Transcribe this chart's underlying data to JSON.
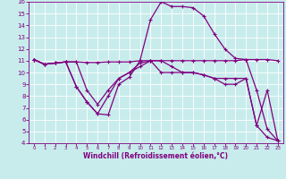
{
  "xlabel": "Windchill (Refroidissement éolien,°C)",
  "background_color": "#c8ecec",
  "line_color": "#800080",
  "grid_color": "#ffffff",
  "xlim": [
    -0.5,
    23.5
  ],
  "ylim": [
    4,
    16
  ],
  "xticks": [
    0,
    1,
    2,
    3,
    4,
    5,
    6,
    7,
    8,
    9,
    10,
    11,
    12,
    13,
    14,
    15,
    16,
    17,
    18,
    19,
    20,
    21,
    22,
    23
  ],
  "yticks": [
    4,
    5,
    6,
    7,
    8,
    9,
    10,
    11,
    12,
    13,
    14,
    15,
    16
  ],
  "series1_x": [
    0,
    1,
    2,
    3,
    4,
    5,
    6,
    7,
    8,
    9,
    10,
    11,
    12,
    13,
    14,
    15,
    16,
    17,
    18,
    19,
    20,
    21,
    22,
    23
  ],
  "series1_y": [
    11.1,
    10.7,
    10.8,
    10.9,
    10.9,
    10.85,
    10.85,
    10.9,
    10.9,
    10.9,
    11.0,
    11.0,
    11.0,
    11.0,
    11.0,
    11.0,
    11.0,
    11.0,
    11.0,
    11.0,
    11.1,
    11.1,
    11.1,
    11.0
  ],
  "series2_x": [
    0,
    1,
    2,
    3,
    4,
    5,
    6,
    7,
    8,
    9,
    10,
    11,
    12,
    13,
    14,
    15,
    16,
    17,
    18,
    19,
    20,
    21,
    22,
    23
  ],
  "series2_y": [
    11.1,
    10.7,
    10.8,
    10.9,
    8.8,
    7.5,
    6.5,
    6.4,
    9.0,
    9.6,
    11.0,
    14.5,
    16.0,
    15.6,
    15.6,
    15.5,
    14.8,
    13.3,
    12.0,
    11.2,
    11.1,
    8.5,
    5.2,
    4.2
  ],
  "series3_x": [
    0,
    1,
    2,
    3,
    4,
    5,
    6,
    7,
    8,
    9,
    10,
    11,
    12,
    13,
    14,
    15,
    16,
    17,
    18,
    19,
    20,
    21,
    22,
    23
  ],
  "series3_y": [
    11.1,
    10.7,
    10.8,
    10.9,
    8.8,
    7.5,
    6.5,
    8.0,
    9.5,
    10.0,
    10.5,
    11.0,
    10.0,
    10.0,
    10.0,
    10.0,
    9.8,
    9.5,
    9.5,
    9.5,
    9.5,
    5.5,
    4.5,
    4.2
  ],
  "series4_x": [
    0,
    1,
    2,
    3,
    4,
    5,
    6,
    7,
    8,
    9,
    10,
    11,
    12,
    13,
    14,
    15,
    16,
    17,
    18,
    19,
    20,
    21,
    22,
    23
  ],
  "series4_y": [
    11.1,
    10.7,
    10.8,
    10.9,
    10.9,
    8.5,
    7.3,
    8.5,
    9.5,
    10.0,
    10.8,
    11.0,
    11.0,
    10.5,
    10.0,
    10.0,
    9.8,
    9.5,
    9.0,
    9.0,
    9.5,
    5.5,
    8.5,
    4.2
  ]
}
